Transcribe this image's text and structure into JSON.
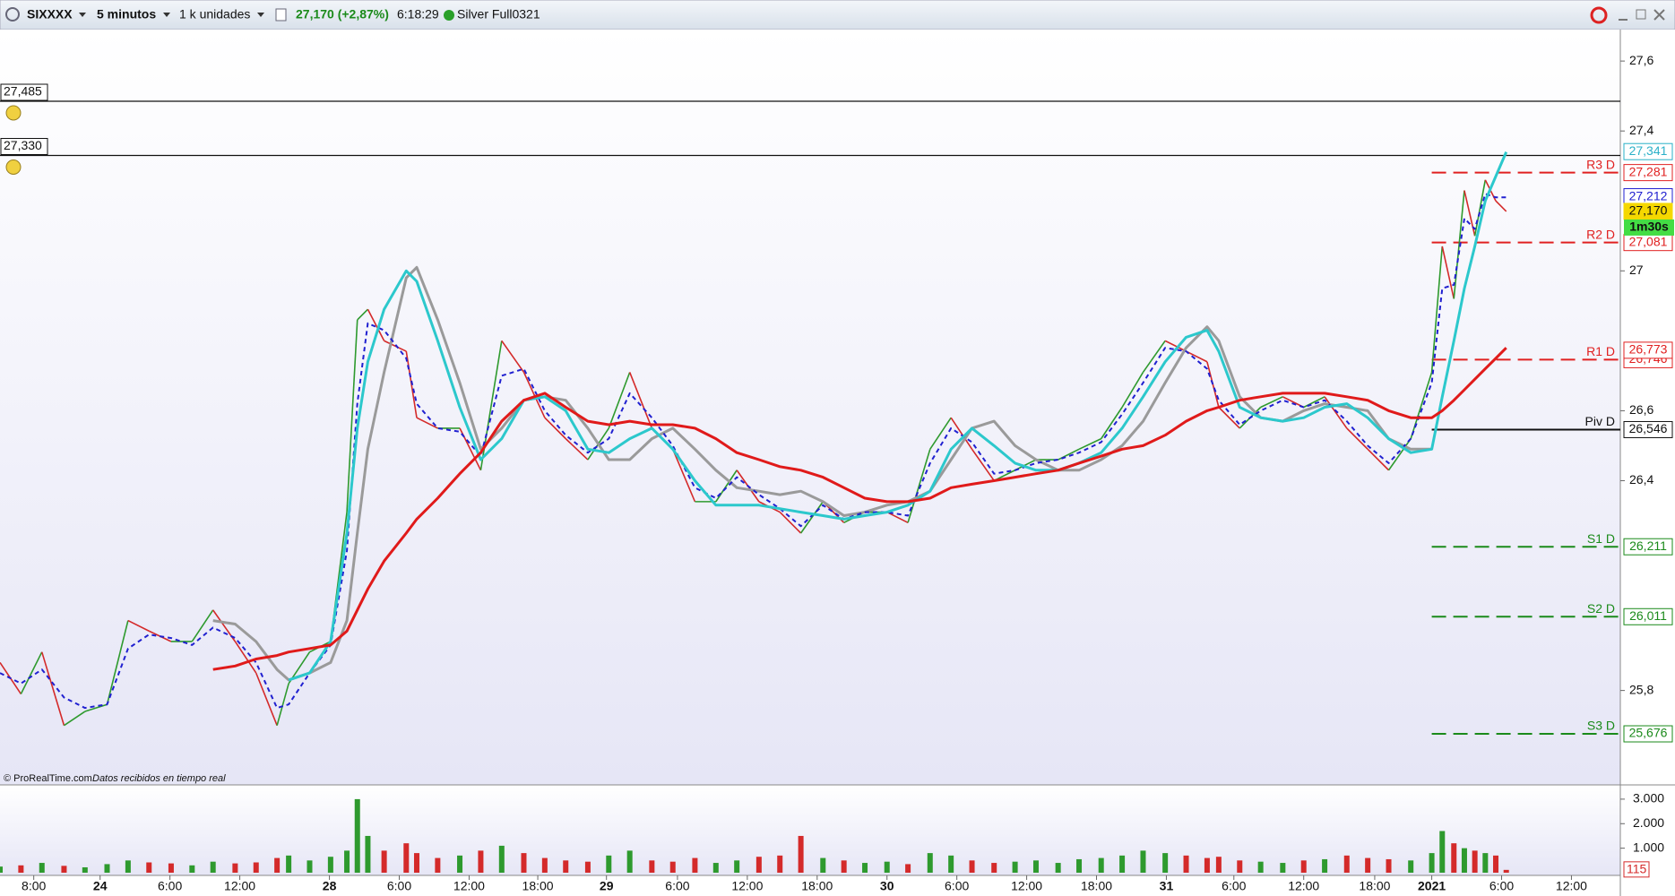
{
  "toolbar": {
    "symbol": "SIXXXX",
    "period": "5 minutos",
    "units": "1 k unidades",
    "quote": "27,170 (+2,87%)",
    "time": "6:18:29",
    "instrument": "Silver Full0321"
  },
  "footer": {
    "source": "© ProRealTime.com",
    "note": "Datos recibidos en tiempo real"
  },
  "chart_data": {
    "type": "line",
    "xlim": [
      -8.6,
      130.6
    ],
    "xticks": [
      {
        "value": -5.7,
        "label": "8:00"
      },
      {
        "value": 0,
        "label": "24",
        "bold": true
      },
      {
        "value": 6,
        "label": "6:00"
      },
      {
        "value": 12,
        "label": "12:00"
      },
      {
        "value": 19.7,
        "label": "28",
        "bold": true
      },
      {
        "value": 25.7,
        "label": "6:00"
      },
      {
        "value": 31.7,
        "label": "12:00"
      },
      {
        "value": 37.6,
        "label": "18:00"
      },
      {
        "value": 43.5,
        "label": "29",
        "bold": true
      },
      {
        "value": 49.6,
        "label": "6:00"
      },
      {
        "value": 55.6,
        "label": "12:00"
      },
      {
        "value": 61.6,
        "label": "18:00"
      },
      {
        "value": 67.6,
        "label": "30",
        "bold": true
      },
      {
        "value": 73.6,
        "label": "6:00"
      },
      {
        "value": 79.6,
        "label": "12:00"
      },
      {
        "value": 85.6,
        "label": "18:00"
      },
      {
        "value": 91.6,
        "label": "31",
        "bold": true
      },
      {
        "value": 97.4,
        "label": "6:00"
      },
      {
        "value": 103.4,
        "label": "12:00"
      },
      {
        "value": 109.5,
        "label": "18:00"
      },
      {
        "value": 114.4,
        "label": "2021",
        "bold": true
      },
      {
        "value": 120.4,
        "label": "6:00"
      },
      {
        "value": 126.4,
        "label": "12:00"
      }
    ],
    "ylim": [
      25.53,
      27.69
    ],
    "yticks": [
      {
        "value": 27.6,
        "label": "27,6"
      },
      {
        "value": 27.4,
        "label": "27,4"
      },
      27,
      {
        "value": 26.6,
        "label": "26,6"
      },
      {
        "value": 26.4,
        "label": "26,4"
      },
      {
        "value": 25.8,
        "label": "25,8"
      }
    ],
    "x": [
      -8.6,
      -6.8,
      -5.0,
      -3.1,
      -1.3,
      0.6,
      2.4,
      4.2,
      6.1,
      7.9,
      9.7,
      11.6,
      13.4,
      15.2,
      16.2,
      18.0,
      19.8,
      21.2,
      22.1,
      23.0,
      24.4,
      26.3,
      27.2,
      29.0,
      30.9,
      32.7,
      34.5,
      36.4,
      38.2,
      40.0,
      41.9,
      43.7,
      45.5,
      47.4,
      49.2,
      51.1,
      52.9,
      54.7,
      56.6,
      58.4,
      60.2,
      62.1,
      63.9,
      65.7,
      67.6,
      69.4,
      71.3,
      73.1,
      74.9,
      76.8,
      78.6,
      80.4,
      82.3,
      84.1,
      86.0,
      87.8,
      89.6,
      91.5,
      93.3,
      95.1,
      96.1,
      97.9,
      99.7,
      101.6,
      103.4,
      105.2,
      107.1,
      108.9,
      110.7,
      112.6,
      114.4,
      115.3,
      116.3,
      117.2,
      118.1,
      119.0,
      119.9,
      120.8
    ],
    "price": {
      "up_color": "#2e9a2e",
      "down_color": "#d42a2a",
      "values": [
        25.88,
        25.79,
        25.91,
        25.7,
        25.74,
        25.76,
        26.0,
        25.97,
        25.94,
        25.94,
        26.03,
        25.94,
        25.85,
        25.7,
        25.82,
        25.91,
        25.94,
        26.31,
        26.86,
        26.89,
        26.8,
        26.77,
        26.58,
        26.55,
        26.55,
        26.43,
        26.8,
        26.71,
        26.58,
        26.52,
        26.46,
        26.55,
        26.71,
        26.55,
        26.49,
        26.34,
        26.34,
        26.43,
        26.34,
        26.31,
        26.25,
        26.34,
        26.28,
        26.31,
        26.31,
        26.28,
        26.49,
        26.58,
        26.49,
        26.4,
        26.43,
        26.46,
        26.46,
        26.49,
        26.52,
        26.61,
        26.71,
        26.8,
        26.77,
        26.74,
        26.61,
        26.55,
        26.61,
        26.64,
        26.61,
        26.64,
        26.55,
        26.49,
        26.43,
        26.52,
        26.71,
        27.07,
        26.92,
        27.23,
        27.1,
        27.26,
        27.2,
        27.17
      ]
    },
    "series": [
      {
        "color": "#9a9a9a",
        "width": 3,
        "style": "solid",
        "values": [
          null,
          null,
          null,
          null,
          null,
          null,
          null,
          null,
          null,
          null,
          26.0,
          25.99,
          25.94,
          25.86,
          25.83,
          25.85,
          25.88,
          26.0,
          26.25,
          26.49,
          26.71,
          26.98,
          27.01,
          26.86,
          26.68,
          26.49,
          26.55,
          26.63,
          26.64,
          26.63,
          26.55,
          26.46,
          26.46,
          26.52,
          26.55,
          26.49,
          26.43,
          26.38,
          26.37,
          26.36,
          26.37,
          26.34,
          26.3,
          26.31,
          26.33,
          26.34,
          26.37,
          26.46,
          26.55,
          26.57,
          26.5,
          26.46,
          26.43,
          26.43,
          26.46,
          26.5,
          26.57,
          26.68,
          26.78,
          26.84,
          26.8,
          26.64,
          26.58,
          26.57,
          26.6,
          26.62,
          26.61,
          26.6,
          26.52,
          26.49,
          26.49,
          null,
          null,
          null,
          null,
          null,
          null,
          null
        ]
      },
      {
        "color": "#2020d0",
        "width": 2,
        "style": "dashed",
        "values": [
          25.85,
          25.82,
          25.86,
          25.78,
          25.75,
          25.76,
          25.92,
          25.96,
          25.95,
          25.93,
          25.98,
          25.95,
          25.88,
          25.75,
          25.76,
          25.85,
          25.93,
          26.2,
          26.62,
          26.85,
          26.83,
          26.75,
          26.62,
          26.55,
          26.54,
          26.47,
          26.7,
          26.72,
          26.6,
          26.53,
          26.48,
          26.52,
          26.65,
          26.58,
          26.5,
          26.38,
          26.35,
          26.41,
          26.36,
          26.32,
          26.27,
          26.33,
          26.29,
          26.31,
          26.31,
          26.3,
          26.45,
          26.55,
          26.51,
          26.42,
          26.43,
          26.45,
          26.46,
          26.48,
          26.51,
          26.59,
          26.68,
          26.78,
          26.77,
          26.72,
          26.63,
          26.56,
          26.6,
          26.63,
          26.61,
          26.63,
          26.57,
          26.5,
          26.45,
          26.52,
          26.68,
          26.95,
          26.96,
          27.15,
          27.12,
          27.22,
          27.21,
          27.21
        ]
      },
      {
        "color": "#2cc8cc",
        "width": 3,
        "style": "solid",
        "values": [
          null,
          null,
          null,
          null,
          null,
          null,
          null,
          null,
          null,
          null,
          null,
          null,
          null,
          null,
          25.83,
          25.85,
          25.94,
          26.25,
          26.55,
          26.74,
          26.89,
          27.0,
          26.97,
          26.8,
          26.61,
          26.46,
          26.52,
          26.63,
          26.64,
          26.6,
          26.49,
          26.48,
          26.52,
          26.55,
          26.49,
          26.4,
          26.33,
          26.33,
          26.33,
          26.32,
          26.31,
          26.3,
          26.29,
          26.3,
          26.31,
          26.33,
          26.37,
          26.49,
          26.55,
          26.5,
          26.45,
          26.43,
          26.43,
          26.45,
          26.48,
          26.55,
          26.64,
          26.74,
          26.81,
          26.83,
          26.77,
          26.61,
          26.58,
          26.57,
          26.58,
          26.61,
          26.62,
          26.58,
          26.52,
          26.48,
          26.49,
          26.64,
          26.8,
          26.95,
          27.07,
          27.2,
          27.27,
          27.34
        ]
      },
      {
        "color": "#e01a1a",
        "width": 3,
        "style": "solid",
        "values": [
          null,
          null,
          null,
          null,
          null,
          null,
          null,
          null,
          null,
          null,
          25.86,
          25.87,
          25.89,
          25.9,
          25.91,
          25.92,
          25.93,
          25.97,
          26.03,
          26.09,
          26.17,
          26.25,
          26.29,
          26.35,
          26.42,
          26.48,
          26.57,
          26.63,
          26.65,
          26.61,
          26.57,
          26.56,
          26.57,
          26.56,
          26.56,
          26.55,
          26.52,
          26.48,
          26.46,
          26.44,
          26.43,
          26.41,
          26.38,
          26.35,
          26.34,
          26.34,
          26.35,
          26.38,
          26.39,
          26.4,
          26.41,
          26.42,
          26.43,
          26.45,
          26.47,
          26.49,
          26.5,
          26.53,
          26.57,
          26.6,
          26.61,
          26.63,
          26.64,
          26.65,
          26.65,
          26.65,
          26.64,
          26.63,
          26.6,
          26.58,
          26.58,
          26.6,
          26.63,
          26.66,
          26.69,
          26.72,
          26.75,
          26.78
        ]
      }
    ],
    "pivot_start": 114.4,
    "pivots": [
      {
        "name": "R3 D",
        "value": 27.281,
        "label": "27,281",
        "color": "#e02020",
        "style": "dashed"
      },
      {
        "name": "R2 D",
        "value": 27.081,
        "label": "27,081",
        "color": "#e02020",
        "style": "dashed"
      },
      {
        "name": "R1 D",
        "value": 26.746,
        "label": "26,746",
        "color": "#e02020",
        "style": "dashed"
      },
      {
        "name": "Piv D",
        "value": 26.546,
        "label": "26,546",
        "color": "#111111",
        "style": "solid"
      },
      {
        "name": "S1 D",
        "value": 26.211,
        "label": "26,211",
        "color": "#1a8a1a",
        "style": "dashed"
      },
      {
        "name": "S2 D",
        "value": 26.011,
        "label": "26,011",
        "color": "#1a8a1a",
        "style": "dashed"
      },
      {
        "name": "S3 D",
        "value": 25.676,
        "label": "25,676",
        "color": "#1a8a1a",
        "style": "dashed"
      }
    ],
    "markers": [
      {
        "value": 27.341,
        "label": "27,341",
        "color": "#2ab0c8"
      },
      {
        "value": 27.212,
        "label": "27,212",
        "color": "#2020d0"
      },
      {
        "value": 27.17,
        "label": "27,170",
        "color": "#111111",
        "background": "#f5d800"
      },
      {
        "value": 26.773,
        "label": "26,773",
        "color": "#e02020"
      }
    ],
    "countdown": "1m30s",
    "alerts": [
      {
        "value": 27.485,
        "label": "27,485"
      },
      {
        "value": 27.33,
        "label": "27,330"
      }
    ],
    "volume": {
      "ylim": [
        0,
        3435
      ],
      "yticks": [
        {
          "value": 1000,
          "label": "1.000"
        },
        {
          "value": 2000,
          "label": "2.000"
        },
        {
          "value": 3000,
          "label": "3.000"
        }
      ],
      "values": [
        250,
        300,
        400,
        280,
        220,
        350,
        500,
        420,
        380,
        300,
        450,
        380,
        420,
        600,
        700,
        500,
        650,
        900,
        3000,
        1500,
        900,
        1200,
        800,
        600,
        700,
        900,
        1100,
        800,
        600,
        500,
        450,
        700,
        900,
        500,
        450,
        600,
        400,
        500,
        650,
        700,
        1500,
        600,
        500,
        400,
        450,
        350,
        800,
        700,
        500,
        400,
        450,
        500,
        400,
        550,
        600,
        700,
        900,
        800,
        700,
        600,
        650,
        500,
        450,
        400,
        500,
        550,
        700,
        600,
        550,
        500,
        800,
        1700,
        1200,
        1000,
        900,
        800,
        700,
        115
      ]
    }
  }
}
